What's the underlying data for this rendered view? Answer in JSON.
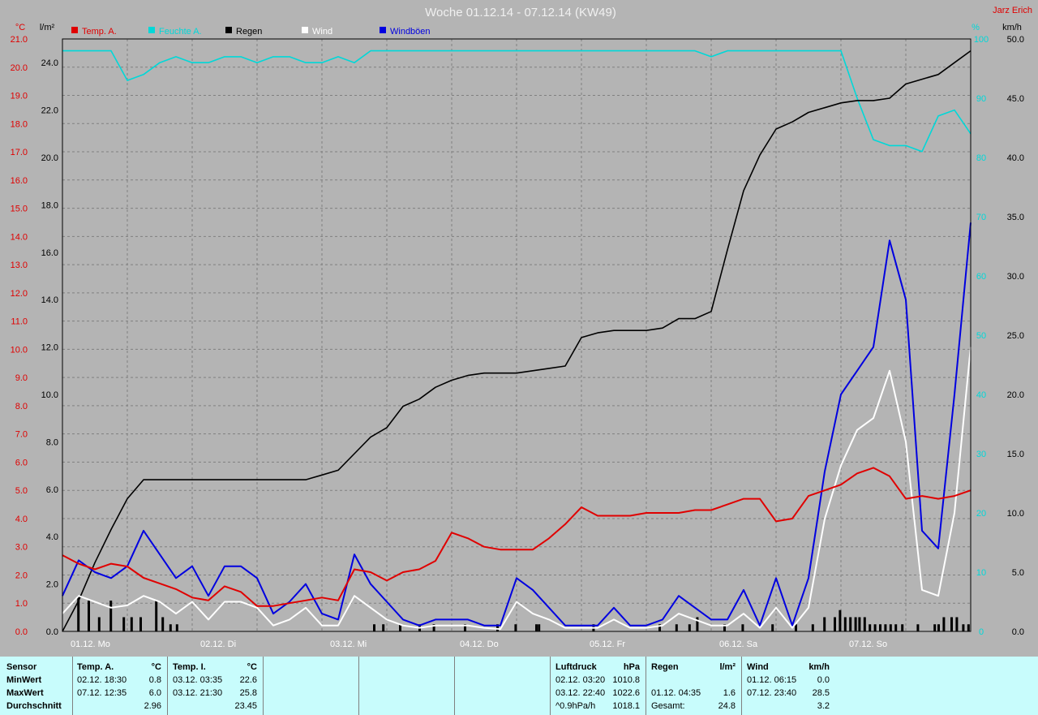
{
  "title": "Woche 01.12.14 - 07.12.14 (KW49)",
  "author": "Jarz Erich",
  "colors": {
    "background": "#b4b4b4",
    "temp": "#e00000",
    "pressure": "#00d8d8",
    "rain": "#000000",
    "wind": "#ffffff",
    "gust": "#0000e0",
    "grid": "#808080",
    "stats_bg": "#c8fcfc"
  },
  "axes": {
    "temp_unit": "°C",
    "rain_unit": "l/m²",
    "pressure_unit": "%",
    "wind_unit": "km/h",
    "temp_ticks": [
      "21.0",
      "20.0",
      "19.0",
      "18.0",
      "17.0",
      "16.0",
      "15.0",
      "14.0",
      "13.0",
      "12.0",
      "11.0",
      "10.0",
      "9.0",
      "8.0",
      "7.0",
      "6.0",
      "5.0",
      "4.0",
      "3.0",
      "2.0",
      "1.0",
      "0.0"
    ],
    "rain_ticks": [
      "24.0",
      "22.0",
      "20.0",
      "18.0",
      "16.0",
      "14.0",
      "12.0",
      "10.0",
      "8.0",
      "6.0",
      "4.0",
      "2.0",
      "0.0"
    ],
    "pressure_ticks": [
      "100",
      "90",
      "80",
      "70",
      "60",
      "50",
      "40",
      "30",
      "20",
      "10",
      "0"
    ],
    "wind_ticks": [
      "50.0",
      "45.0",
      "40.0",
      "35.0",
      "30.0",
      "25.0",
      "20.0",
      "15.0",
      "10.0",
      "5.0",
      "0.0"
    ],
    "day_labels": [
      "01.12. Mo",
      "02.12. Di",
      "03.12. Mi",
      "04.12. Do",
      "05.12. Fr",
      "06.12. Sa",
      "07.12. So"
    ]
  },
  "chart_data": {
    "type": "line",
    "title": "Woche 01.12.14 - 07.12.14 (KW49)",
    "x_range_days": [
      0,
      7
    ],
    "x": [
      0,
      0.125,
      0.25,
      0.375,
      0.5,
      0.625,
      0.75,
      0.875,
      1,
      1.125,
      1.25,
      1.375,
      1.5,
      1.625,
      1.75,
      1.875,
      2,
      2.125,
      2.25,
      2.375,
      2.5,
      2.625,
      2.75,
      2.875,
      3,
      3.125,
      3.25,
      3.375,
      3.5,
      3.625,
      3.75,
      3.875,
      4,
      4.125,
      4.25,
      4.375,
      4.5,
      4.625,
      4.75,
      4.875,
      5,
      5.125,
      5.25,
      5.375,
      5.5,
      5.625,
      5.75,
      5.875,
      6,
      6.125,
      6.25,
      6.375,
      6.5,
      6.625,
      6.75,
      6.875,
      7
    ],
    "legend": [
      "Temp. A.",
      "Feuchte A.",
      "Regen",
      "Wind",
      "Windböen"
    ],
    "series": [
      {
        "name": "Temp. A.",
        "axis": "left °C",
        "ylim": [
          0,
          21
        ],
        "values": [
          2.7,
          2.4,
          2.2,
          2.4,
          2.3,
          1.9,
          1.7,
          1.5,
          1.2,
          1.1,
          1.6,
          1.4,
          0.9,
          0.9,
          1.0,
          1.1,
          1.2,
          1.1,
          2.2,
          2.1,
          1.8,
          2.1,
          2.2,
          2.5,
          3.5,
          3.3,
          3.0,
          2.9,
          2.9,
          2.9,
          3.3,
          3.8,
          4.4,
          4.1,
          4.1,
          4.1,
          4.2,
          4.2,
          4.2,
          4.3,
          4.3,
          4.5,
          4.7,
          4.7,
          3.9,
          4.0,
          4.8,
          5.0,
          5.2,
          5.6,
          5.8,
          5.5,
          4.7,
          4.8,
          4.7,
          4.8,
          5.0
        ]
      },
      {
        "name": "Feuchte A.",
        "axis": "right %",
        "ylim": [
          0,
          100
        ],
        "values": [
          98,
          98,
          98,
          98,
          93,
          94,
          96,
          97,
          96,
          96,
          97,
          97,
          96,
          97,
          97,
          96,
          96,
          97,
          96,
          98,
          98,
          98,
          98,
          98,
          98,
          98,
          98,
          98,
          98,
          98,
          98,
          98,
          98,
          98,
          98,
          98,
          98,
          98,
          98,
          98,
          97,
          98,
          98,
          98,
          98,
          98,
          98,
          98,
          98,
          90,
          83,
          82,
          82,
          81,
          87,
          88,
          84
        ]
      },
      {
        "name": "Regen",
        "axis": "left l/m²",
        "ylim": [
          0,
          25
        ],
        "values": [
          0.0,
          1.3,
          2.9,
          4.3,
          5.6,
          6.4,
          6.4,
          6.4,
          6.4,
          6.4,
          6.4,
          6.4,
          6.4,
          6.4,
          6.4,
          6.4,
          6.6,
          6.8,
          7.5,
          8.2,
          8.6,
          9.5,
          9.8,
          10.3,
          10.6,
          10.8,
          10.9,
          10.9,
          10.9,
          11.0,
          11.1,
          11.2,
          12.4,
          12.6,
          12.7,
          12.7,
          12.7,
          12.8,
          13.2,
          13.2,
          13.5,
          16.1,
          18.6,
          20.1,
          21.2,
          21.5,
          21.9,
          22.1,
          22.3,
          22.4,
          22.4,
          22.5,
          23.1,
          23.3,
          23.5,
          24.0,
          24.5
        ]
      },
      {
        "name": "Wind",
        "axis": "right km/h",
        "ylim": [
          0,
          50
        ],
        "values": [
          1.5,
          3.0,
          2.5,
          2.0,
          2.2,
          3.0,
          2.5,
          1.5,
          2.5,
          1.0,
          2.5,
          2.5,
          2.0,
          0.5,
          1.0,
          2.0,
          0.5,
          0.5,
          3.0,
          2.0,
          1.0,
          0.5,
          0.3,
          0.5,
          0.5,
          0.5,
          0.3,
          0.2,
          2.5,
          1.5,
          1.0,
          0.3,
          0.3,
          0.3,
          1.0,
          0.3,
          0.3,
          0.5,
          1.5,
          1.0,
          0.5,
          0.5,
          1.5,
          0.3,
          2.0,
          0.3,
          2.0,
          9.5,
          14.0,
          17.0,
          18.0,
          22.0,
          16.0,
          3.5,
          3.0,
          10.0,
          24.0
        ]
      },
      {
        "name": "Windböen",
        "axis": "right km/h",
        "ylim": [
          0,
          50
        ],
        "values": [
          3.0,
          6.0,
          5.0,
          4.5,
          5.5,
          8.5,
          6.5,
          4.5,
          5.5,
          3.0,
          5.5,
          5.5,
          4.5,
          1.5,
          2.5,
          4.0,
          1.5,
          1.0,
          6.5,
          4.0,
          2.5,
          1.0,
          0.5,
          1.0,
          1.0,
          1.0,
          0.5,
          0.5,
          4.5,
          3.5,
          2.0,
          0.5,
          0.5,
          0.5,
          2.0,
          0.5,
          0.5,
          1.0,
          3.0,
          2.0,
          1.0,
          1.0,
          3.5,
          0.5,
          4.5,
          0.5,
          4.5,
          13.5,
          20.0,
          22.0,
          24.0,
          33.0,
          28.0,
          8.5,
          7.0,
          20.0,
          34.5
        ]
      }
    ],
    "rain_bars": [
      {
        "x": 0.12,
        "value": 1.5
      },
      {
        "x": 0.2,
        "value": 1.3
      },
      {
        "x": 0.28,
        "value": 0.6
      },
      {
        "x": 0.37,
        "value": 1.3
      },
      {
        "x": 0.47,
        "value": 0.6
      },
      {
        "x": 0.53,
        "value": 0.6
      },
      {
        "x": 0.6,
        "value": 0.6
      },
      {
        "x": 0.72,
        "value": 1.3
      },
      {
        "x": 0.77,
        "value": 0.6
      },
      {
        "x": 0.83,
        "value": 0.3
      },
      {
        "x": 0.88,
        "value": 0.3
      },
      {
        "x": 2.4,
        "value": 0.3
      },
      {
        "x": 2.47,
        "value": 0.3
      },
      {
        "x": 2.6,
        "value": 0.3
      },
      {
        "x": 2.75,
        "value": 0.3
      },
      {
        "x": 2.86,
        "value": 0.3
      },
      {
        "x": 3.1,
        "value": 0.3
      },
      {
        "x": 3.35,
        "value": 0.3
      },
      {
        "x": 3.49,
        "value": 0.3
      },
      {
        "x": 3.65,
        "value": 0.3
      },
      {
        "x": 3.67,
        "value": 0.3
      },
      {
        "x": 4.09,
        "value": 0.3
      },
      {
        "x": 4.6,
        "value": 0.3
      },
      {
        "x": 4.73,
        "value": 0.3
      },
      {
        "x": 4.83,
        "value": 0.3
      },
      {
        "x": 4.89,
        "value": 0.6
      },
      {
        "x": 5.1,
        "value": 0.3
      },
      {
        "x": 5.24,
        "value": 0.3
      },
      {
        "x": 5.47,
        "value": 0.3
      },
      {
        "x": 5.65,
        "value": 0.3
      },
      {
        "x": 5.78,
        "value": 0.3
      },
      {
        "x": 5.87,
        "value": 0.6
      },
      {
        "x": 5.95,
        "value": 0.6
      },
      {
        "x": 5.99,
        "value": 0.9
      },
      {
        "x": 6.03,
        "value": 0.6
      },
      {
        "x": 6.07,
        "value": 0.6
      },
      {
        "x": 6.11,
        "value": 0.6
      },
      {
        "x": 6.14,
        "value": 0.6
      },
      {
        "x": 6.18,
        "value": 0.6
      },
      {
        "x": 6.22,
        "value": 0.3
      },
      {
        "x": 6.26,
        "value": 0.3
      },
      {
        "x": 6.3,
        "value": 0.3
      },
      {
        "x": 6.34,
        "value": 0.3
      },
      {
        "x": 6.38,
        "value": 0.3
      },
      {
        "x": 6.42,
        "value": 0.3
      },
      {
        "x": 6.47,
        "value": 0.3
      },
      {
        "x": 6.59,
        "value": 0.3
      },
      {
        "x": 6.72,
        "value": 0.3
      },
      {
        "x": 6.75,
        "value": 0.3
      },
      {
        "x": 6.79,
        "value": 0.6
      },
      {
        "x": 6.85,
        "value": 0.6
      },
      {
        "x": 6.89,
        "value": 0.6
      },
      {
        "x": 6.94,
        "value": 0.3
      },
      {
        "x": 6.98,
        "value": 0.3
      }
    ]
  },
  "stats": {
    "labels": {
      "sensor": "Sensor",
      "min": "MinWert",
      "max": "MaxWert",
      "avg": "Durchschnitt"
    },
    "temp_a": {
      "head": "Temp. A.",
      "unit": "°C",
      "min_time": "02.12.  18:30",
      "min_val": "0.8",
      "max_time": "07.12.  12:35",
      "max_val": "6.0",
      "avg": "2.96"
    },
    "temp_i": {
      "head": "Temp. I.",
      "unit": "°C",
      "min_time": "03.12.  03:35",
      "min_val": "22.6",
      "max_time": "03.12.  21:30",
      "max_val": "25.8",
      "avg": "23.45"
    },
    "pressure": {
      "head": "Luftdruck",
      "unit": "hPa",
      "min_time": "02.12.  03:20",
      "min_val": "1010.8",
      "max_time": "03.12.  22:40",
      "max_val": "1022.6",
      "trend": "^0.9hPa/h",
      "avg": "1018.1"
    },
    "rain": {
      "head": "Regen",
      "unit": "l/m²",
      "max_time": "01.12.  04:35",
      "max_val": "1.6",
      "total_label": "Gesamt:",
      "total": "24.8"
    },
    "wind": {
      "head": "Wind",
      "unit": "km/h",
      "min_time": "01.12.  06:15",
      "min_val": "0.0",
      "max_time": "07.12.  23:40",
      "max_val": "28.5",
      "avg": "3.2"
    }
  }
}
